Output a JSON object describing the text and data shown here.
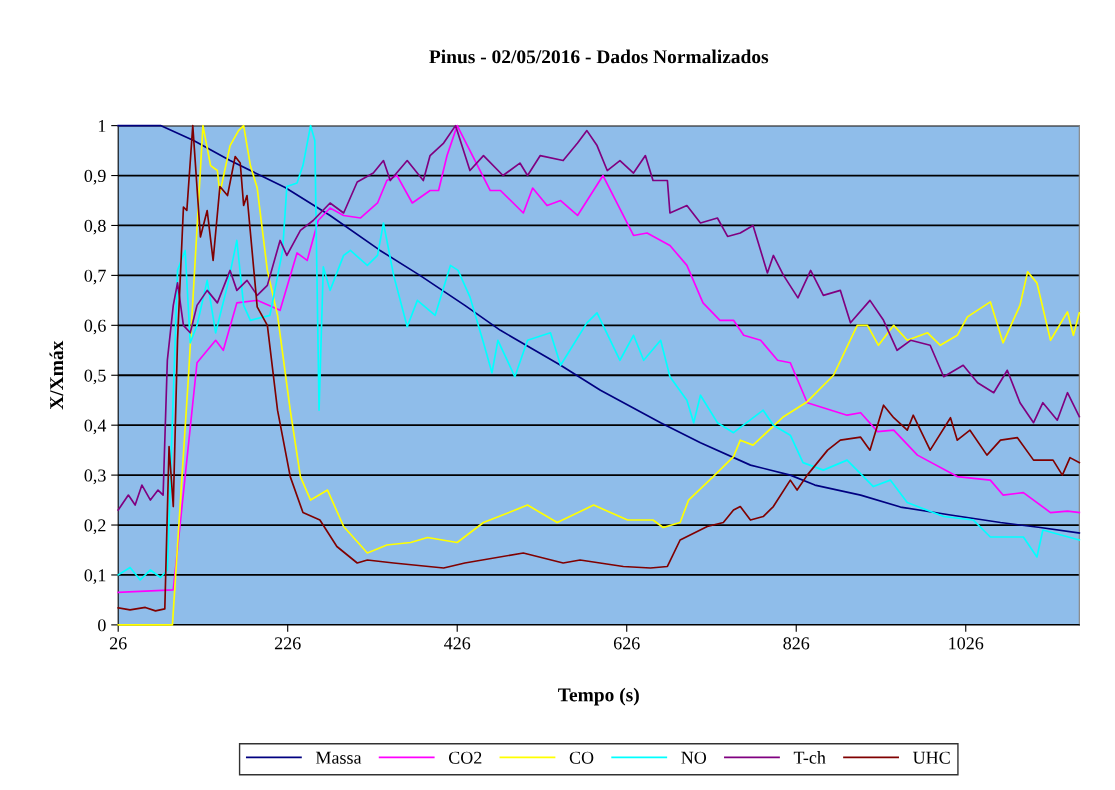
{
  "chart_data": {
    "type": "line",
    "title": "Pinus - 02/05/2016 - Dados Normalizados",
    "xlabel": "Tempo (s)",
    "ylabel": "X/Xmáx",
    "xlim": [
      26,
      1160
    ],
    "xticks": [
      26,
      226,
      426,
      626,
      826,
      1026
    ],
    "ylim": [
      0,
      1
    ],
    "yticks": [
      0,
      {
        "value": 0.1,
        "label": "0,1"
      },
      {
        "value": 0.2,
        "label": "0,2"
      },
      {
        "value": 0.3,
        "label": "0,3"
      },
      {
        "value": 0.4,
        "label": "0,4"
      },
      {
        "value": 0.5,
        "label": "0,5"
      },
      {
        "value": 0.6,
        "label": "0,6"
      },
      {
        "value": 0.7,
        "label": "0,7"
      },
      {
        "value": 0.8,
        "label": "0,8"
      },
      {
        "value": 0.9,
        "label": "0,9"
      },
      1
    ],
    "grid": "y",
    "legend": "bottom",
    "marker": "none",
    "line_style": "solid",
    "series": [
      {
        "name": "Massa",
        "color": "#000080",
        "x": [
          26,
          76,
          115,
          158,
          194,
          223,
          276,
          335,
          382,
          435,
          477,
          548,
          595,
          666,
          713,
          772,
          819,
          848,
          902,
          949,
          1008,
          1067,
          1114,
          1160
        ],
        "values": [
          1.0,
          1.0,
          0.97,
          0.93,
          0.9,
          0.876,
          0.82,
          0.75,
          0.7,
          0.64,
          0.59,
          0.52,
          0.47,
          0.405,
          0.365,
          0.32,
          0.3,
          0.28,
          0.26,
          0.236,
          0.22,
          0.205,
          0.195,
          0.184
        ]
      },
      {
        "name": "CO2",
        "color": "#ff00ff",
        "x": [
          26,
          91,
          119,
          141,
          150,
          166,
          190,
          217,
          237,
          249,
          262,
          276,
          292,
          312,
          332,
          343,
          355,
          373,
          394,
          404,
          414,
          426,
          465,
          477,
          504,
          515,
          532,
          548,
          568,
          598,
          634,
          650,
          677,
          697,
          716,
          736,
          752,
          764,
          784,
          804,
          819,
          839,
          886,
          902,
          922,
          941,
          969,
          1016,
          1055,
          1070,
          1094,
          1126,
          1146,
          1160
        ],
        "values": [
          0.065,
          0.07,
          0.525,
          0.57,
          0.55,
          0.645,
          0.65,
          0.63,
          0.745,
          0.73,
          0.81,
          0.835,
          0.82,
          0.815,
          0.845,
          0.89,
          0.9,
          0.845,
          0.87,
          0.87,
          0.94,
          1.0,
          0.87,
          0.87,
          0.825,
          0.875,
          0.84,
          0.85,
          0.82,
          0.9,
          0.78,
          0.785,
          0.76,
          0.72,
          0.645,
          0.61,
          0.61,
          0.58,
          0.57,
          0.53,
          0.525,
          0.445,
          0.42,
          0.425,
          0.387,
          0.39,
          0.34,
          0.297,
          0.29,
          0.26,
          0.265,
          0.225,
          0.228,
          0.225
        ]
      },
      {
        "name": "CO",
        "color": "#ffff00",
        "x": [
          26,
          90,
          109,
          126,
          135,
          143,
          146,
          158,
          168,
          174,
          182,
          190,
          202,
          214,
          229,
          241,
          253,
          273,
          292,
          320,
          343,
          371,
          391,
          426,
          457,
          509,
          544,
          587,
          627,
          657,
          669,
          689,
          699,
          728,
          752,
          760,
          775,
          811,
          839,
          870,
          898,
          910,
          923,
          941,
          957,
          981,
          996,
          1016,
          1028,
          1055,
          1070,
          1090,
          1099,
          1110,
          1126,
          1146,
          1153,
          1160
        ],
        "values": [
          0,
          0,
          0.5,
          1.0,
          0.92,
          0.91,
          0.865,
          0.96,
          0.99,
          1.0,
          0.92,
          0.875,
          0.71,
          0.62,
          0.43,
          0.297,
          0.25,
          0.27,
          0.197,
          0.144,
          0.16,
          0.165,
          0.175,
          0.165,
          0.205,
          0.24,
          0.205,
          0.24,
          0.21,
          0.21,
          0.195,
          0.205,
          0.25,
          0.297,
          0.337,
          0.37,
          0.36,
          0.417,
          0.447,
          0.5,
          0.6,
          0.6,
          0.56,
          0.6,
          0.57,
          0.585,
          0.56,
          0.58,
          0.617,
          0.647,
          0.565,
          0.64,
          0.707,
          0.685,
          0.57,
          0.627,
          0.58,
          0.625
        ]
      },
      {
        "name": "NO",
        "color": "#00ffff",
        "x": [
          26,
          40,
          52,
          64,
          76,
          84,
          96,
          105,
          111,
          119,
          131,
          141,
          155,
          166,
          174,
          182,
          205,
          220,
          225,
          237,
          244,
          253,
          258,
          263,
          268,
          276,
          292,
          300,
          320,
          332,
          339,
          351,
          367,
          379,
          400,
          418,
          427,
          441,
          457,
          467,
          474,
          494,
          509,
          536,
          548,
          579,
          591,
          618,
          634,
          646,
          666,
          677,
          697,
          705,
          713,
          733,
          752,
          787,
          799,
          819,
          834,
          858,
          886,
          917,
          937,
          957,
          1000,
          1035,
          1055,
          1094,
          1110,
          1117,
          1160
        ],
        "values": [
          0.1,
          0.115,
          0.09,
          0.11,
          0.095,
          0.11,
          0.71,
          0.75,
          0.565,
          0.6,
          0.69,
          0.585,
          0.68,
          0.77,
          0.64,
          0.61,
          0.62,
          0.75,
          0.878,
          0.885,
          0.92,
          1.0,
          0.97,
          0.43,
          0.717,
          0.67,
          0.74,
          0.75,
          0.72,
          0.74,
          0.805,
          0.7,
          0.597,
          0.65,
          0.62,
          0.72,
          0.71,
          0.657,
          0.565,
          0.505,
          0.57,
          0.497,
          0.57,
          0.585,
          0.52,
          0.605,
          0.625,
          0.53,
          0.58,
          0.53,
          0.57,
          0.497,
          0.45,
          0.405,
          0.46,
          0.405,
          0.385,
          0.43,
          0.4,
          0.38,
          0.325,
          0.31,
          0.33,
          0.277,
          0.29,
          0.245,
          0.217,
          0.21,
          0.176,
          0.176,
          0.136,
          0.19,
          0.17
        ]
      },
      {
        "name": "T-ch",
        "color": "#800080",
        "x": [
          26,
          38,
          46,
          54,
          64,
          73,
          79,
          84,
          91,
          96,
          103,
          111,
          119,
          131,
          143,
          158,
          166,
          178,
          190,
          202,
          217,
          225,
          241,
          256,
          276,
          292,
          308,
          327,
          339,
          347,
          367,
          386,
          394,
          410,
          424,
          441,
          457,
          480,
          500,
          509,
          524,
          551,
          568,
          579,
          591,
          603,
          618,
          634,
          648,
          657,
          674,
          677,
          697,
          713,
          733,
          745,
          760,
          775,
          792,
          799,
          811,
          828,
          843,
          858,
          878,
          890,
          913,
          929,
          945,
          961,
          984,
          1000,
          1023,
          1040,
          1059,
          1075,
          1090,
          1106,
          1117,
          1134,
          1146,
          1160
        ],
        "values": [
          0.23,
          0.26,
          0.24,
          0.28,
          0.25,
          0.27,
          0.26,
          0.53,
          0.64,
          0.685,
          0.6,
          0.585,
          0.64,
          0.67,
          0.645,
          0.71,
          0.67,
          0.69,
          0.66,
          0.68,
          0.77,
          0.74,
          0.79,
          0.81,
          0.845,
          0.825,
          0.887,
          0.905,
          0.93,
          0.89,
          0.93,
          0.89,
          0.94,
          0.965,
          1.0,
          0.91,
          0.94,
          0.9,
          0.925,
          0.9,
          0.94,
          0.93,
          0.965,
          0.99,
          0.96,
          0.91,
          0.93,
          0.905,
          0.94,
          0.89,
          0.89,
          0.825,
          0.84,
          0.805,
          0.815,
          0.778,
          0.785,
          0.8,
          0.705,
          0.74,
          0.7,
          0.655,
          0.71,
          0.66,
          0.67,
          0.605,
          0.65,
          0.61,
          0.55,
          0.57,
          0.56,
          0.497,
          0.52,
          0.485,
          0.465,
          0.51,
          0.445,
          0.405,
          0.445,
          0.41,
          0.465,
          0.417
        ]
      },
      {
        "name": "UHC",
        "color": "#800000",
        "x": [
          26,
          40,
          58,
          70,
          81,
          86,
          91,
          96,
          103,
          107,
          114,
          123,
          131,
          138,
          146,
          155,
          164,
          170,
          174,
          178,
          190,
          202,
          214,
          229,
          244,
          264,
          284,
          308,
          320,
          351,
          410,
          435,
          504,
          551,
          571,
          622,
          654,
          674,
          689,
          721,
          740,
          752,
          760,
          772,
          787,
          799,
          819,
          827,
          839,
          863,
          878,
          902,
          913,
          929,
          941,
          957,
          964,
          984,
          1008,
          1016,
          1031,
          1051,
          1067,
          1087,
          1106,
          1129,
          1140,
          1149,
          1160
        ],
        "values": [
          0.034,
          0.03,
          0.035,
          0.028,
          0.032,
          0.357,
          0.237,
          0.57,
          0.837,
          0.83,
          1.0,
          0.777,
          0.83,
          0.73,
          0.878,
          0.86,
          0.938,
          0.925,
          0.84,
          0.86,
          0.637,
          0.6,
          0.43,
          0.297,
          0.225,
          0.21,
          0.157,
          0.124,
          0.13,
          0.124,
          0.114,
          0.124,
          0.144,
          0.124,
          0.13,
          0.117,
          0.114,
          0.117,
          0.17,
          0.197,
          0.205,
          0.23,
          0.237,
          0.21,
          0.217,
          0.237,
          0.29,
          0.27,
          0.3,
          0.35,
          0.37,
          0.376,
          0.35,
          0.44,
          0.415,
          0.39,
          0.42,
          0.35,
          0.415,
          0.37,
          0.39,
          0.34,
          0.37,
          0.375,
          0.33,
          0.33,
          0.3,
          0.335,
          0.325
        ]
      }
    ]
  }
}
